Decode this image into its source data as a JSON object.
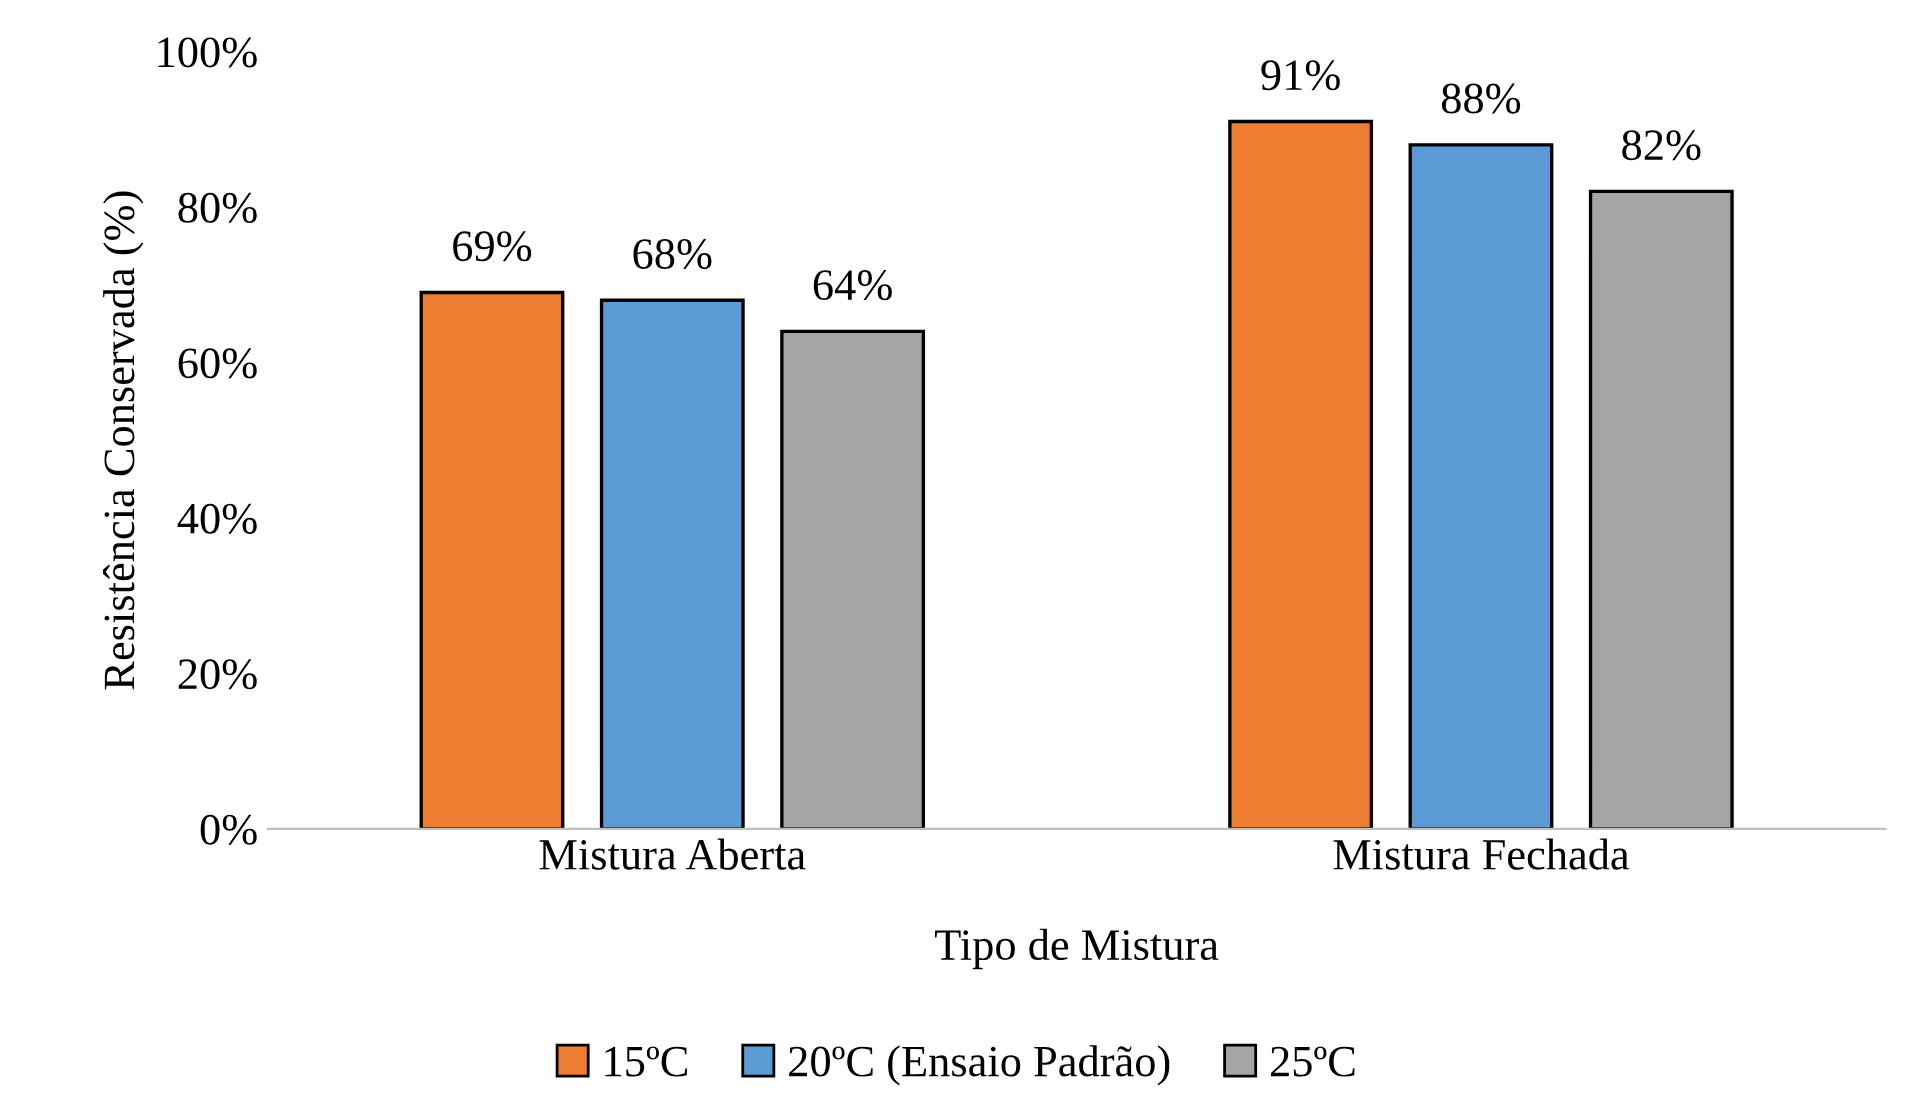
{
  "chart_data": {
    "type": "bar",
    "xlabel": "Tipo de Mistura",
    "ylabel": "Resistência Conservada (%)",
    "categories": [
      "Mistura Aberta",
      "Mistura Fechada"
    ],
    "series": [
      {
        "name": "15ºC",
        "color": "#ed7d31",
        "values": [
          69,
          91
        ],
        "value_labels": [
          "69%",
          "91%"
        ]
      },
      {
        "name": "20ºC (Ensaio Padrão)",
        "color": "#5b9bd5",
        "values": [
          68,
          88
        ],
        "value_labels": [
          "68%",
          "88%"
        ]
      },
      {
        "name": "25ºC",
        "color": "#a5a5a5",
        "values": [
          64,
          82
        ],
        "value_labels": [
          "64%",
          "82%"
        ]
      }
    ],
    "ylim": [
      0,
      100
    ],
    "yticks": [
      {
        "value": 0,
        "label": "0%"
      },
      {
        "value": 20,
        "label": "20%"
      },
      {
        "value": 40,
        "label": "40%"
      },
      {
        "value": 60,
        "label": "60%"
      },
      {
        "value": 80,
        "label": "80%"
      },
      {
        "value": 100,
        "label": "100%"
      }
    ],
    "grid": false,
    "legend": "bottom"
  }
}
